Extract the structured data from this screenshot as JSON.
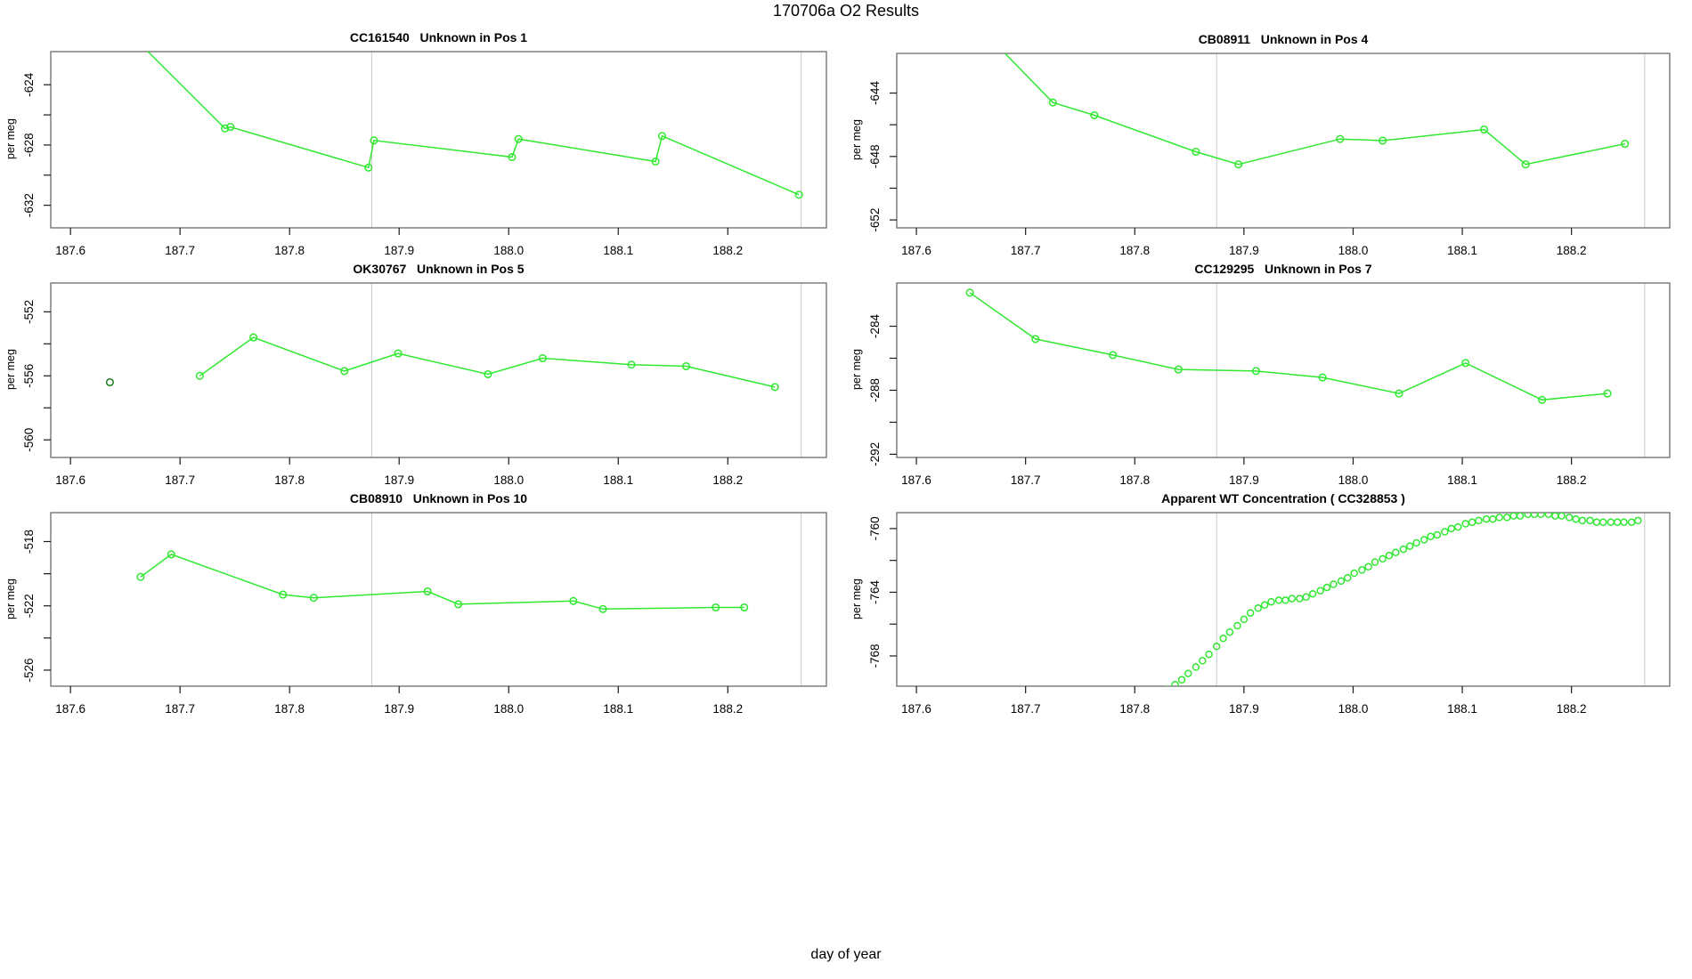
{
  "page": {
    "title": "170706a  O2 Results",
    "xlabel": "day of year"
  },
  "axis": {
    "ylabel": "per meg",
    "xlim": [
      187.582,
      188.29
    ],
    "xticks": [
      187.6,
      187.7,
      187.8,
      187.9,
      188.0,
      188.1,
      188.2
    ],
    "xtick_labels": [
      "187.6",
      "187.7",
      "187.8",
      "187.9",
      "188.0",
      "188.1",
      "188.2"
    ],
    "vlines": [
      187.875,
      188.267
    ],
    "grid_color": "#c9c9c9",
    "border_color": "#6b6b6b",
    "tick_color": "#1a1a1a"
  },
  "colors": {
    "series_green": "#30e830",
    "dark_green": "#1e7d1e"
  },
  "chart_data": [
    {
      "type": "line",
      "title": "CC161540   Unknown in Pos 1",
      "ylabel": "per meg",
      "ylim": [
        -633.5,
        -621.8
      ],
      "yticks": [
        -632,
        -630,
        -628,
        -626,
        -624
      ],
      "ytick_labels": [
        "-632",
        "",
        "-628",
        "",
        "-624"
      ],
      "series": [
        {
          "name": "O2 samples",
          "color": "#30e830",
          "line": true,
          "marker_r": 3.8,
          "points": [
            [
              187.65,
              -620.3
            ],
            [
              187.741,
              -626.9
            ],
            [
              187.746,
              -626.8
            ],
            [
              187.872,
              -629.5
            ],
            [
              187.877,
              -627.7
            ],
            [
              188.003,
              -628.8
            ],
            [
              188.009,
              -627.6
            ],
            [
              188.134,
              -629.1
            ],
            [
              188.14,
              -627.4
            ],
            [
              188.265,
              -631.3
            ]
          ]
        }
      ]
    },
    {
      "type": "line",
      "title": "CB08911   Unknown in Pos 4",
      "ylabel": "per meg",
      "ylim": [
        -652.5,
        -641.5
      ],
      "yticks": [
        -652,
        -650,
        -648,
        -646,
        -644
      ],
      "ytick_labels": [
        "-652",
        "",
        "-648",
        "",
        "-644"
      ],
      "series": [
        {
          "name": "O2 samples",
          "color": "#30e830",
          "line": true,
          "marker_r": 3.8,
          "points": [
            [
              187.65,
              -639.3
            ],
            [
              187.725,
              -644.6
            ],
            [
              187.763,
              -645.4
            ],
            [
              187.856,
              -647.7
            ],
            [
              187.895,
              -648.5
            ],
            [
              187.988,
              -646.9
            ],
            [
              188.027,
              -647.0
            ],
            [
              188.12,
              -646.3
            ],
            [
              188.158,
              -648.5
            ],
            [
              188.249,
              -647.2
            ]
          ]
        }
      ]
    },
    {
      "type": "line",
      "title": "OK30767   Unknown in Pos 5",
      "ylabel": "per meg",
      "ylim": [
        -561.1,
        -550.2
      ],
      "yticks": [
        -560,
        -558,
        -556,
        -554,
        -552
      ],
      "ytick_labels": [
        "-560",
        "",
        "-556",
        "",
        "-552"
      ],
      "series": [
        {
          "name": "flagged point",
          "color": "#1e7d1e",
          "line": false,
          "marker_r": 3.8,
          "points": [
            [
              187.636,
              -556.4
            ]
          ]
        },
        {
          "name": "O2 samples",
          "color": "#30e830",
          "line": true,
          "marker_r": 3.8,
          "points": [
            [
              187.718,
              -556.0
            ],
            [
              187.767,
              -553.6
            ],
            [
              187.85,
              -555.7
            ],
            [
              187.899,
              -554.6
            ],
            [
              187.981,
              -555.9
            ],
            [
              188.031,
              -554.9
            ],
            [
              188.112,
              -555.3
            ],
            [
              188.162,
              -555.4
            ],
            [
              188.243,
              -556.7
            ]
          ]
        }
      ]
    },
    {
      "type": "line",
      "title": "CC129295   Unknown in Pos 7",
      "ylabel": "per meg",
      "ylim": [
        -292.2,
        -281.3
      ],
      "yticks": [
        -292,
        -290,
        -288,
        -286,
        -284
      ],
      "ytick_labels": [
        "-292",
        "",
        "-288",
        "",
        "-284"
      ],
      "series": [
        {
          "name": "O2 samples",
          "color": "#30e830",
          "line": true,
          "marker_r": 3.8,
          "points": [
            [
              187.649,
              -281.9
            ],
            [
              187.709,
              -284.8
            ],
            [
              187.78,
              -285.8
            ],
            [
              187.84,
              -286.7
            ],
            [
              187.911,
              -286.8
            ],
            [
              187.972,
              -287.2
            ],
            [
              188.042,
              -288.2
            ],
            [
              188.103,
              -286.3
            ],
            [
              188.173,
              -288.6
            ],
            [
              188.233,
              -288.2
            ]
          ]
        }
      ]
    },
    {
      "type": "line",
      "title": "CB08910   Unknown in Pos 10",
      "ylabel": "per meg",
      "ylim": [
        -527.0,
        -516.2
      ],
      "yticks": [
        -526,
        -524,
        -522,
        -520,
        -518
      ],
      "ytick_labels": [
        "-526",
        "",
        "-522",
        "",
        "-518"
      ],
      "series": [
        {
          "name": "O2 samples",
          "color": "#30e830",
          "line": true,
          "marker_r": 3.8,
          "points": [
            [
              187.664,
              -520.2
            ],
            [
              187.692,
              -518.8
            ],
            [
              187.794,
              -521.3
            ],
            [
              187.822,
              -521.5
            ],
            [
              187.926,
              -521.1
            ],
            [
              187.954,
              -521.9
            ],
            [
              188.059,
              -521.7
            ],
            [
              188.086,
              -522.2
            ],
            [
              188.189,
              -522.1
            ],
            [
              188.215,
              -522.1
            ]
          ]
        }
      ]
    },
    {
      "type": "scatter",
      "title": "Apparent WT Concentration ( CC328853 )",
      "ylabel": "per meg",
      "ylim": [
        -769.9,
        -759.0
      ],
      "yticks": [
        -768,
        -766,
        -764,
        -762,
        -760
      ],
      "ytick_labels": [
        "-768",
        "",
        "-764",
        "",
        "-760"
      ],
      "series": [
        {
          "name": "apparent WT concentration",
          "color": "#30e830",
          "line": false,
          "marker_r": 3.5,
          "points": [
            [
              187.824,
              -770.4
            ],
            [
              187.83,
              -770.1
            ],
            [
              187.837,
              -769.8
            ],
            [
              187.843,
              -769.5
            ],
            [
              187.849,
              -769.1
            ],
            [
              187.856,
              -768.7
            ],
            [
              187.862,
              -768.3
            ],
            [
              187.868,
              -767.9
            ],
            [
              187.875,
              -767.4
            ],
            [
              187.881,
              -766.9
            ],
            [
              187.887,
              -766.5
            ],
            [
              187.894,
              -766.1
            ],
            [
              187.9,
              -765.7
            ],
            [
              187.906,
              -765.3
            ],
            [
              187.913,
              -765.0
            ],
            [
              187.919,
              -764.8
            ],
            [
              187.925,
              -764.6
            ],
            [
              187.932,
              -764.5
            ],
            [
              187.938,
              -764.5
            ],
            [
              187.944,
              -764.4
            ],
            [
              187.951,
              -764.4
            ],
            [
              187.957,
              -764.3
            ],
            [
              187.963,
              -764.1
            ],
            [
              187.97,
              -763.9
            ],
            [
              187.976,
              -763.7
            ],
            [
              187.982,
              -763.5
            ],
            [
              187.989,
              -763.3
            ],
            [
              187.995,
              -763.1
            ],
            [
              188.001,
              -762.8
            ],
            [
              188.008,
              -762.6
            ],
            [
              188.014,
              -762.4
            ],
            [
              188.02,
              -762.1
            ],
            [
              188.027,
              -761.9
            ],
            [
              188.033,
              -761.7
            ],
            [
              188.039,
              -761.5
            ],
            [
              188.046,
              -761.3
            ],
            [
              188.052,
              -761.1
            ],
            [
              188.058,
              -760.9
            ],
            [
              188.065,
              -760.7
            ],
            [
              188.071,
              -760.5
            ],
            [
              188.077,
              -760.4
            ],
            [
              188.084,
              -760.2
            ],
            [
              188.09,
              -760.0
            ],
            [
              188.096,
              -759.9
            ],
            [
              188.103,
              -759.7
            ],
            [
              188.109,
              -759.6
            ],
            [
              188.115,
              -759.5
            ],
            [
              188.122,
              -759.4
            ],
            [
              188.128,
              -759.4
            ],
            [
              188.134,
              -759.3
            ],
            [
              188.141,
              -759.3
            ],
            [
              188.147,
              -759.2
            ],
            [
              188.153,
              -759.2
            ],
            [
              188.16,
              -759.1
            ],
            [
              188.166,
              -759.1
            ],
            [
              188.172,
              -759.1
            ],
            [
              188.179,
              -759.1
            ],
            [
              188.185,
              -759.2
            ],
            [
              188.191,
              -759.2
            ],
            [
              188.198,
              -759.3
            ],
            [
              188.204,
              -759.4
            ],
            [
              188.21,
              -759.5
            ],
            [
              188.217,
              -759.5
            ],
            [
              188.223,
              -759.6
            ],
            [
              188.229,
              -759.6
            ],
            [
              188.236,
              -759.6
            ],
            [
              188.242,
              -759.6
            ],
            [
              188.248,
              -759.6
            ],
            [
              188.255,
              -759.6
            ],
            [
              188.261,
              -759.5
            ]
          ]
        }
      ]
    }
  ]
}
